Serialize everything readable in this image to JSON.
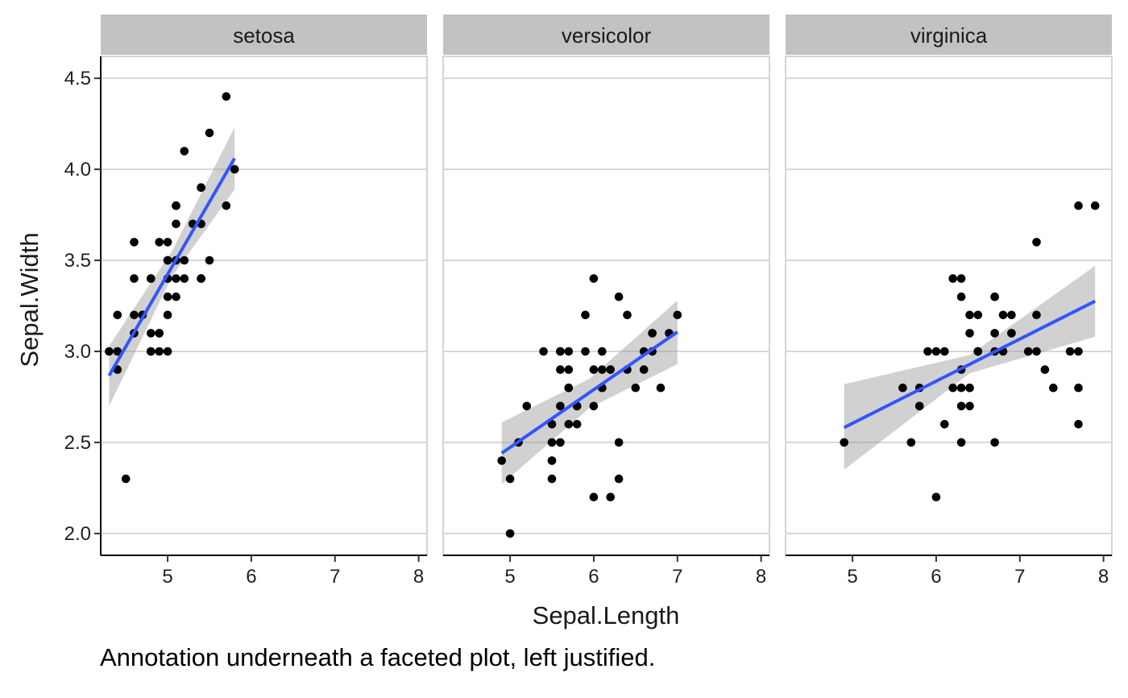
{
  "caption": "Annotation underneath a faceted plot, left justified.",
  "chart_data": {
    "type": "scatter",
    "xlabel": "Sepal.Length",
    "ylabel": "Sepal.Width",
    "xlim": [
      4.2,
      8.1
    ],
    "ylim": [
      1.88,
      4.62
    ],
    "x_ticks": [
      5,
      6,
      7,
      8
    ],
    "y_ticks": [
      2.0,
      2.5,
      3.0,
      3.5,
      4.0,
      4.5
    ],
    "y_tick_labels": [
      "2.0",
      "2.5",
      "3.0",
      "3.5",
      "4.0",
      "4.5"
    ],
    "grid": "horizontal major",
    "point_color": "#000000",
    "smooth_color": "#3355ff",
    "band_color": "#999999",
    "facets": [
      {
        "label": "setosa",
        "points": [
          [
            5.1,
            3.5
          ],
          [
            4.9,
            3.0
          ],
          [
            4.7,
            3.2
          ],
          [
            4.6,
            3.1
          ],
          [
            5.0,
            3.6
          ],
          [
            5.4,
            3.9
          ],
          [
            4.6,
            3.4
          ],
          [
            5.0,
            3.4
          ],
          [
            4.4,
            2.9
          ],
          [
            4.9,
            3.1
          ],
          [
            5.4,
            3.7
          ],
          [
            4.8,
            3.4
          ],
          [
            4.8,
            3.0
          ],
          [
            4.3,
            3.0
          ],
          [
            5.8,
            4.0
          ],
          [
            5.7,
            4.4
          ],
          [
            5.4,
            3.9
          ],
          [
            5.1,
            3.5
          ],
          [
            5.7,
            3.8
          ],
          [
            5.1,
            3.8
          ],
          [
            5.4,
            3.4
          ],
          [
            5.1,
            3.7
          ],
          [
            4.6,
            3.6
          ],
          [
            5.1,
            3.3
          ],
          [
            4.8,
            3.4
          ],
          [
            5.0,
            3.0
          ],
          [
            5.0,
            3.4
          ],
          [
            5.2,
            3.5
          ],
          [
            5.2,
            3.4
          ],
          [
            4.7,
            3.2
          ],
          [
            4.8,
            3.1
          ],
          [
            5.4,
            3.4
          ],
          [
            5.2,
            4.1
          ],
          [
            5.5,
            4.2
          ],
          [
            4.9,
            3.1
          ],
          [
            5.0,
            3.2
          ],
          [
            5.5,
            3.5
          ],
          [
            4.9,
            3.6
          ],
          [
            4.4,
            3.0
          ],
          [
            5.1,
            3.4
          ],
          [
            5.0,
            3.5
          ],
          [
            4.5,
            2.3
          ],
          [
            4.4,
            3.2
          ],
          [
            5.0,
            3.5
          ],
          [
            5.1,
            3.8
          ],
          [
            4.8,
            3.0
          ],
          [
            5.1,
            3.8
          ],
          [
            4.6,
            3.2
          ],
          [
            5.3,
            3.7
          ],
          [
            5.0,
            3.3
          ]
        ],
        "smooth": {
          "x": [
            4.3,
            5.8
          ],
          "y": [
            2.867,
            4.06
          ]
        },
        "band": {
          "x": [
            4.3,
            5.05,
            5.8
          ],
          "upper": [
            3.03,
            3.55,
            4.23
          ],
          "lower": [
            2.7,
            3.41,
            3.89
          ]
        }
      },
      {
        "label": "versicolor",
        "points": [
          [
            7.0,
            3.2
          ],
          [
            6.4,
            3.2
          ],
          [
            6.9,
            3.1
          ],
          [
            5.5,
            2.3
          ],
          [
            6.5,
            2.8
          ],
          [
            5.7,
            2.8
          ],
          [
            6.3,
            3.3
          ],
          [
            4.9,
            2.4
          ],
          [
            6.6,
            2.9
          ],
          [
            5.2,
            2.7
          ],
          [
            5.0,
            2.0
          ],
          [
            5.9,
            3.0
          ],
          [
            6.0,
            2.2
          ],
          [
            6.1,
            2.9
          ],
          [
            5.6,
            2.9
          ],
          [
            6.7,
            3.1
          ],
          [
            5.6,
            3.0
          ],
          [
            5.8,
            2.7
          ],
          [
            6.2,
            2.2
          ],
          [
            5.6,
            2.5
          ],
          [
            5.9,
            3.2
          ],
          [
            6.1,
            2.8
          ],
          [
            6.3,
            2.5
          ],
          [
            6.1,
            2.8
          ],
          [
            6.4,
            2.9
          ],
          [
            6.6,
            3.0
          ],
          [
            6.8,
            2.8
          ],
          [
            6.7,
            3.0
          ],
          [
            6.0,
            2.9
          ],
          [
            5.7,
            2.6
          ],
          [
            5.5,
            2.4
          ],
          [
            5.5,
            2.4
          ],
          [
            5.8,
            2.7
          ],
          [
            6.0,
            2.7
          ],
          [
            5.4,
            3.0
          ],
          [
            6.0,
            3.4
          ],
          [
            6.7,
            3.1
          ],
          [
            6.3,
            2.3
          ],
          [
            5.6,
            3.0
          ],
          [
            5.5,
            2.5
          ],
          [
            5.5,
            2.6
          ],
          [
            6.1,
            3.0
          ],
          [
            5.8,
            2.6
          ],
          [
            5.0,
            2.3
          ],
          [
            5.6,
            2.7
          ],
          [
            5.7,
            3.0
          ],
          [
            5.7,
            2.9
          ],
          [
            6.2,
            2.9
          ],
          [
            5.1,
            2.5
          ],
          [
            5.7,
            2.8
          ]
        ],
        "smooth": {
          "x": [
            4.9,
            7.0
          ],
          "y": [
            2.441,
            3.107
          ]
        },
        "band": {
          "x": [
            4.9,
            5.95,
            7.0
          ],
          "upper": [
            2.61,
            2.85,
            3.28
          ],
          "lower": [
            2.27,
            2.69,
            2.93
          ]
        }
      },
      {
        "label": "virginica",
        "points": [
          [
            6.3,
            3.3
          ],
          [
            5.8,
            2.7
          ],
          [
            7.1,
            3.0
          ],
          [
            6.3,
            2.9
          ],
          [
            6.5,
            3.0
          ],
          [
            7.6,
            3.0
          ],
          [
            4.9,
            2.5
          ],
          [
            7.3,
            2.9
          ],
          [
            6.7,
            2.5
          ],
          [
            7.2,
            3.6
          ],
          [
            6.5,
            3.2
          ],
          [
            6.4,
            2.7
          ],
          [
            6.8,
            3.0
          ],
          [
            5.7,
            2.5
          ],
          [
            5.8,
            2.8
          ],
          [
            6.4,
            3.2
          ],
          [
            6.5,
            3.0
          ],
          [
            7.7,
            3.8
          ],
          [
            7.7,
            2.6
          ],
          [
            6.0,
            2.2
          ],
          [
            6.9,
            3.2
          ],
          [
            5.6,
            2.8
          ],
          [
            7.7,
            2.8
          ],
          [
            6.3,
            2.7
          ],
          [
            6.7,
            3.3
          ],
          [
            7.2,
            3.2
          ],
          [
            6.2,
            2.8
          ],
          [
            6.1,
            3.0
          ],
          [
            6.4,
            2.8
          ],
          [
            7.2,
            3.0
          ],
          [
            7.4,
            2.8
          ],
          [
            7.9,
            3.8
          ],
          [
            6.4,
            2.8
          ],
          [
            6.3,
            2.8
          ],
          [
            6.1,
            2.6
          ],
          [
            7.7,
            3.0
          ],
          [
            6.3,
            3.4
          ],
          [
            6.4,
            3.1
          ],
          [
            6.0,
            3.0
          ],
          [
            6.9,
            3.1
          ],
          [
            6.7,
            3.1
          ],
          [
            6.9,
            3.1
          ],
          [
            5.8,
            2.7
          ],
          [
            6.8,
            3.2
          ],
          [
            6.7,
            3.3
          ],
          [
            6.7,
            3.0
          ],
          [
            6.3,
            2.5
          ],
          [
            6.5,
            3.0
          ],
          [
            6.2,
            3.4
          ],
          [
            5.9,
            3.0
          ]
        ],
        "smooth": {
          "x": [
            4.9,
            7.9
          ],
          "y": [
            2.582,
            3.276
          ]
        },
        "band": {
          "x": [
            4.9,
            6.4,
            7.9
          ],
          "upper": [
            2.82,
            2.98,
            3.47
          ],
          "lower": [
            2.35,
            2.88,
            3.08
          ]
        }
      }
    ]
  }
}
